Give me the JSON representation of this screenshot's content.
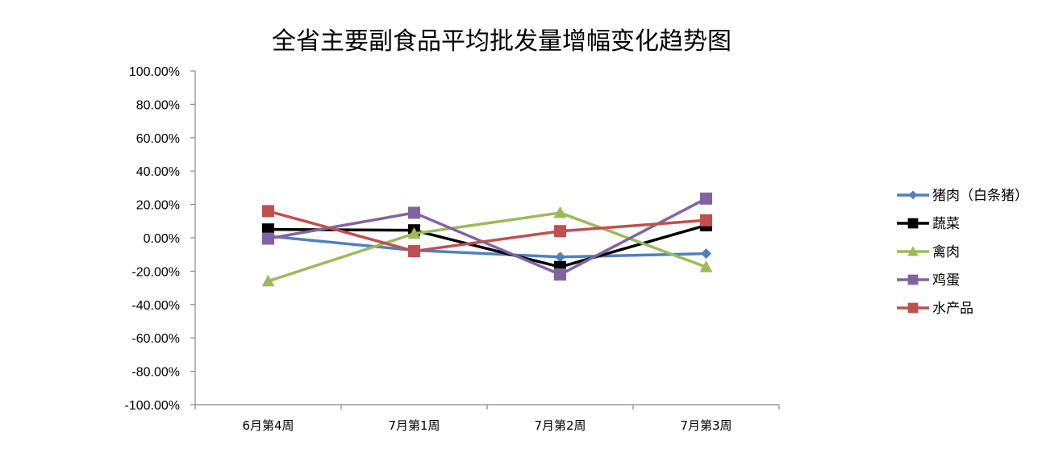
{
  "chart_data": {
    "type": "line",
    "title": "全省主要副食品平均批发量增幅变化趋势图",
    "categories": [
      "6月第4周",
      "7月第1周",
      "7月第2周",
      "7月第3周"
    ],
    "y_tick_labels": [
      "100.00%",
      "80.00%",
      "60.00%",
      "40.00%",
      "20.00%",
      "0.00%",
      "-20.00%",
      "-40.00%",
      "-60.00%",
      "-80.00%",
      "-100.00%"
    ],
    "ylim": [
      -100,
      100
    ],
    "y_unit": "%",
    "grid": false,
    "legend_position": "right",
    "series": [
      {
        "name": "猪肉（白条猪）",
        "color": "#4f81bd",
        "marker": "diamond",
        "values": [
          1,
          -7.5,
          -11.5,
          -9.5
        ]
      },
      {
        "name": "蔬菜",
        "color": "#000000",
        "marker": "square",
        "values": [
          5,
          4.5,
          -17.5,
          7.5
        ]
      },
      {
        "name": "禽肉",
        "color": "#9bbb59",
        "marker": "triangle",
        "values": [
          -26,
          2.5,
          15,
          -17.5
        ]
      },
      {
        "name": "鸡蛋",
        "color": "#8064a2",
        "marker": "square",
        "values": [
          -0.5,
          15,
          -22,
          23.5
        ]
      },
      {
        "name": "水产品",
        "color": "#c0504d",
        "marker": "square",
        "values": [
          16,
          -8,
          4,
          10.5
        ]
      }
    ]
  }
}
